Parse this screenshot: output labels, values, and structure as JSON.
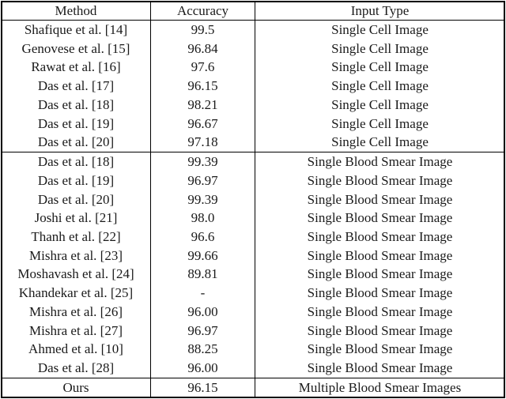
{
  "table": {
    "columns": [
      "Method",
      "Accuracy",
      "Input Type"
    ],
    "rows": [
      {
        "method": "Shafique et al. [14]",
        "accuracy": "99.5",
        "accuracy_bold": true,
        "input_type": "Single Cell Image",
        "section": 1
      },
      {
        "method": "Genovese et al. [15]",
        "accuracy": "96.84",
        "accuracy_bold": false,
        "input_type": "Single Cell Image",
        "section": 1
      },
      {
        "method": "Rawat et al. [16]",
        "accuracy": "97.6",
        "accuracy_bold": false,
        "input_type": "Single Cell Image",
        "section": 1
      },
      {
        "method": "Das et al. [17]",
        "accuracy": "96.15",
        "accuracy_bold": false,
        "input_type": "Single Cell Image",
        "section": 1
      },
      {
        "method": "Das et al. [18]",
        "accuracy": "98.21",
        "accuracy_bold": false,
        "input_type": "Single Cell Image",
        "section": 1
      },
      {
        "method": "Das et al. [19]",
        "accuracy": "96.67",
        "accuracy_bold": false,
        "input_type": "Single Cell Image",
        "section": 1
      },
      {
        "method": "Das et al. [20]",
        "accuracy": "97.18",
        "accuracy_bold": false,
        "input_type": "Single Cell Image",
        "section": 1
      },
      {
        "method": "Das et al. [18]",
        "accuracy": "99.39",
        "accuracy_bold": false,
        "input_type": "Single Blood Smear Image",
        "section": 2
      },
      {
        "method": "Das et al. [19]",
        "accuracy": "96.97",
        "accuracy_bold": false,
        "input_type": "Single Blood Smear Image",
        "section": 2
      },
      {
        "method": "Das et al. [20]",
        "accuracy": "99.39",
        "accuracy_bold": false,
        "input_type": "Single Blood Smear Image",
        "section": 2
      },
      {
        "method": "Joshi et al. [21]",
        "accuracy": "98.0",
        "accuracy_bold": false,
        "input_type": "Single Blood Smear Image",
        "section": 2
      },
      {
        "method": "Thanh et al. [22]",
        "accuracy": "96.6",
        "accuracy_bold": false,
        "input_type": "Single Blood Smear Image",
        "section": 2
      },
      {
        "method": "Mishra et al. [23]",
        "accuracy": "99.66",
        "accuracy_bold": true,
        "input_type": "Single Blood Smear Image",
        "section": 2
      },
      {
        "method": "Moshavash et al. [24]",
        "accuracy": "89.81",
        "accuracy_bold": false,
        "input_type": "Single Blood Smear Image",
        "section": 2
      },
      {
        "method": "Khandekar et al. [25]",
        "accuracy": "-",
        "accuracy_bold": false,
        "input_type": "Single Blood Smear Image",
        "section": 2
      },
      {
        "method": "Mishra et al. [26]",
        "accuracy": "96.00",
        "accuracy_bold": false,
        "input_type": "Single Blood Smear Image",
        "section": 2
      },
      {
        "method": "Mishra et al. [27]",
        "accuracy": "96.97",
        "accuracy_bold": false,
        "input_type": "Single Blood Smear Image",
        "section": 2
      },
      {
        "method": "Ahmed et al. [10]",
        "accuracy": "88.25",
        "accuracy_bold": false,
        "input_type": "Single Blood Smear Image",
        "section": 2
      },
      {
        "method": "Das et al. [28]",
        "accuracy": "96.00",
        "accuracy_bold": false,
        "input_type": "Single Blood Smear Image",
        "section": 2
      },
      {
        "method": "Ours",
        "accuracy": "96.15",
        "accuracy_bold": false,
        "input_type": "Multiple Blood Smear Images",
        "section": 3
      }
    ]
  }
}
